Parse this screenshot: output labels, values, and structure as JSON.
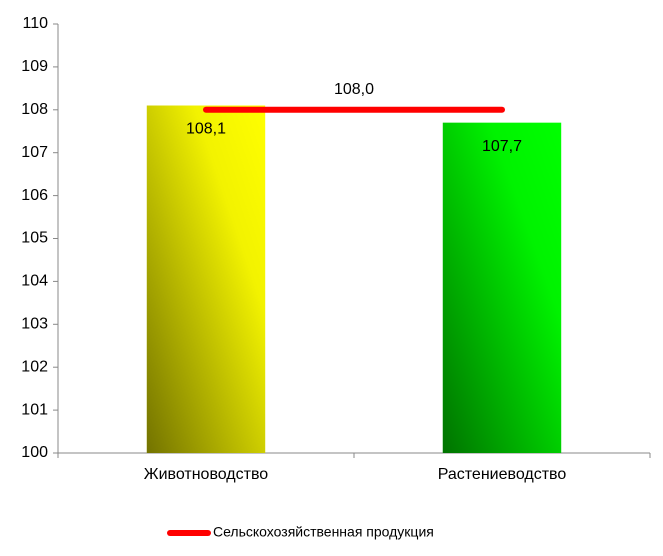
{
  "chart_data": {
    "type": "bar",
    "categories": [
      "Животноводство",
      "Растениеводство"
    ],
    "values": [
      108.1,
      107.7
    ],
    "value_labels": [
      "108,1",
      "107,7"
    ],
    "colors": [
      "#ffff00",
      "#00ff00"
    ],
    "line_series": {
      "name": "Сельскохозяйственная продукция",
      "color": "#ff0000",
      "values": [
        108,
        108
      ]
    },
    "annotation": {
      "label": "108,0",
      "value": 108
    },
    "ylim": [
      100,
      110
    ],
    "yticks": [
      100,
      101,
      102,
      103,
      104,
      105,
      106,
      107,
      108,
      109,
      110
    ],
    "grid": false,
    "legend": "bottom"
  }
}
